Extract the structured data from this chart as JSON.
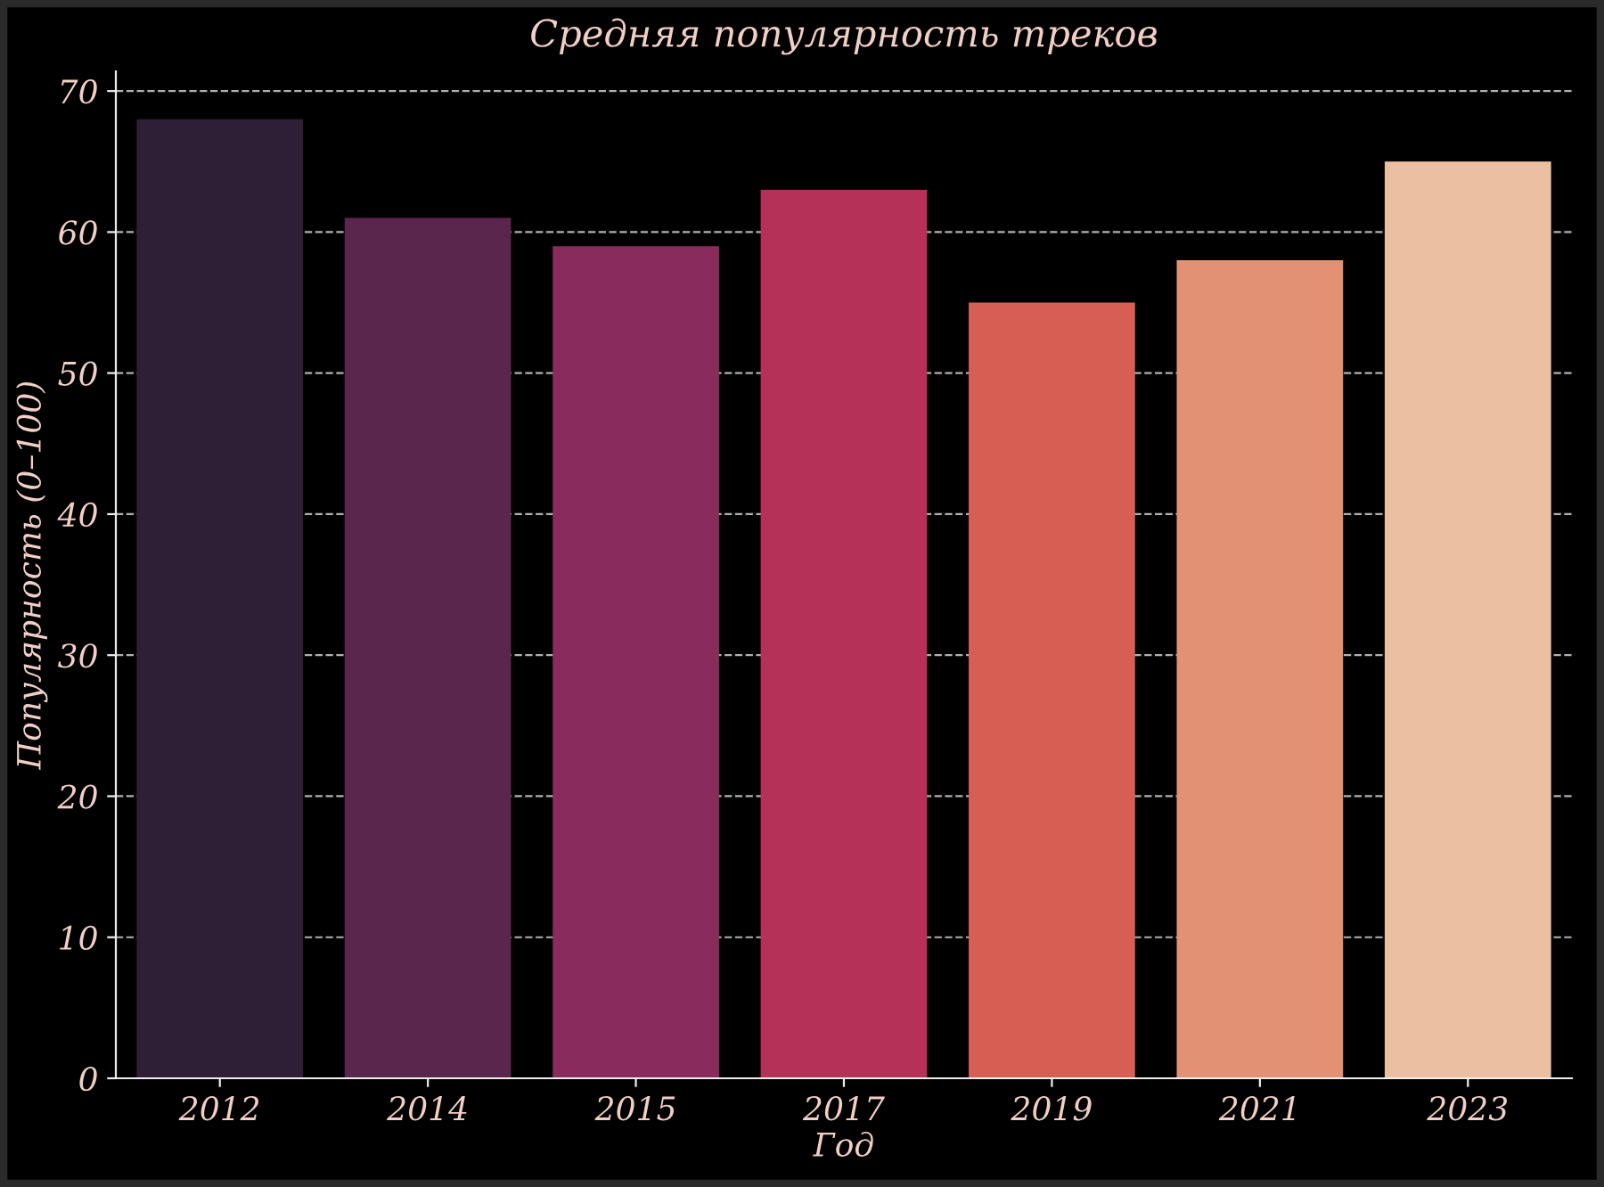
{
  "chart_data": {
    "type": "bar",
    "title": "Средняя популярность треков",
    "xlabel": "Год",
    "ylabel": "Популярность (0–100)",
    "categories": [
      "2012",
      "2014",
      "2015",
      "2017",
      "2019",
      "2021",
      "2023"
    ],
    "values": [
      68,
      61,
      59,
      63,
      55,
      58,
      65
    ],
    "colors": [
      "#2e1e36",
      "#5a264e",
      "#892b5c",
      "#b53157",
      "#d65e52",
      "#e39174",
      "#ebbfa2"
    ],
    "ylim": [
      0,
      71.4
    ],
    "yticks": [
      0,
      10,
      20,
      30,
      40,
      50,
      60,
      70
    ],
    "grid": "y",
    "legend": false
  }
}
